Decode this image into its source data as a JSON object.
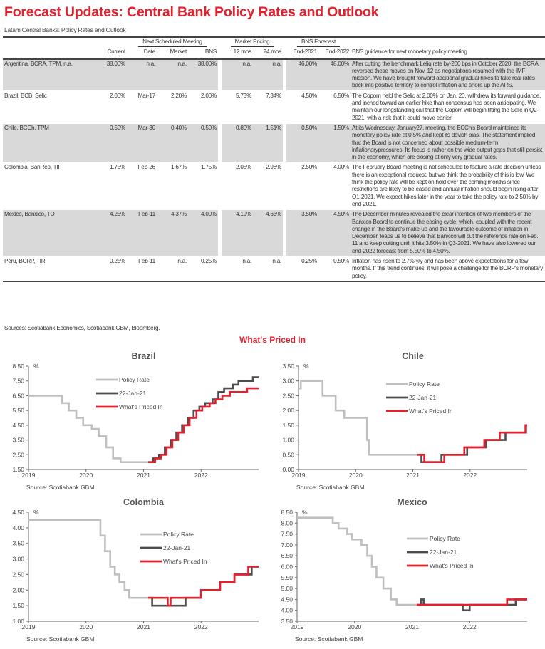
{
  "title": "Forecast Updates: Central Bank Policy Rates and Outlook",
  "subtitle": "Latam Central Banks: Policy Rates and Outlook",
  "table": {
    "group_headers": {
      "next_meeting": "Next Scheduled Meeting",
      "market_pricing": "Market Pricing",
      "bns_forecast": "BNS Forecast"
    },
    "columns": [
      "Current",
      "Date",
      "Market",
      "BNS",
      "12 mos",
      "24 mos",
      "End-2021",
      "End-2022",
      "BNS guidance for next monetary policy meeting"
    ],
    "rows": [
      {
        "bank": "Argentina, BCRA, TPM, n.a.",
        "current": "38.00%",
        "date": "n.a.",
        "market": "n.a.",
        "bns": "38.00%",
        "m12": "n.a.",
        "m24": "n.a.",
        "end2021": "46.00%",
        "end2022": "48.00%",
        "guidance": "After cutting the benchmark Leliq rate by-200 bps in October 2020, the BCRA reversed these moves on Nov. 12 as negotiations resumed with the IMF mission. We have brought forward additional gradual hikes to take real rates back into positive territory to control inflation and shore up the ARS.",
        "shaded": true
      },
      {
        "bank": "Brazil, BCB, Selic",
        "current": "2.00%",
        "date": "Mar-17",
        "market": "2.20%",
        "bns": "2.00%",
        "m12": "5.73%",
        "m24": "7.34%",
        "end2021": "4.50%",
        "end2022": "6.50%",
        "guidance": "The Copom held the Selic at 2.00% on Jan. 20, withdrew its forward guidance, and inched toward an earlier hike than consensus has been anticipating. We maintain our longstanding call that the Copom will begin lifting the Selic in Q2-2021, with a risk that it could move earlier.",
        "shaded": false
      },
      {
        "bank": "Chile, BCCh, TPM",
        "current": "0.50%",
        "date": "Mar-30",
        "market": "0.40%",
        "bns": "0.50%",
        "m12": "0.80%",
        "m24": "1.51%",
        "end2021": "0.50%",
        "end2022": "1.50%",
        "guidance": "At its Wednesday, January27, meeting, the BCCh's Board maintained its monetary policy rate at 0.5% and kept its dovish bias. The statement implied that the Board is not concerned about possible medium-term inflationarypressures. Its focus is rather on the wide output gaps that still persist in the economy, which are closing at only very gradual rates.",
        "shaded": true
      },
      {
        "bank": "Colombia, BanRep, TII",
        "current": "1.75%",
        "date": "Feb-26",
        "market": "1.67%",
        "bns": "1.75%",
        "m12": "2.05%",
        "m24": "2.98%",
        "end2021": "2.50%",
        "end2022": "4.00%",
        "guidance": "The February Board meeting is not scheduled to feature a rate decision unless there is an exceptional request, but we think the probability of this is low. We think the policy rate will be kept on hold over the coming months since restrictions are likely to be eased and annual inflation should begin rising after Q1-2021. We expect hikes later in the year to take the policy rate to 2.50% by end-2021.",
        "shaded": false
      },
      {
        "bank": "Mexico, Banxico, TO",
        "current": "4.25%",
        "date": "Feb-11",
        "market": "4.37%",
        "bns": "4.00%",
        "m12": "4.19%",
        "m24": "4.63%",
        "end2021": "3.50%",
        "end2022": "4.50%",
        "guidance": "The December minutes revealed the clear intention of two members of the Banxico Board to continue the easing cycle, which, coupled with the recent change in the Board's make-up and the favourable outcome of inflation in December, leads us to believe that Banxico will cut the reference rate on Feb. 11 and keep cutting until it hits 3.50% in Q3-2021. We have also lowered our end-2022 forecast from 5.50% to 4.50%.",
        "shaded": true
      },
      {
        "bank": "Peru, BCRP, TIR",
        "current": "0.25%",
        "date": "Feb-11",
        "market": "n.a.",
        "bns": "0.25%",
        "m12": "n.a.",
        "m24": "n.a.",
        "end2021": "0.25%",
        "end2022": "0.50%",
        "guidance": "Inflation has risen to 2.7% y/y and has been above expectations for a few months. If this trend continues, it will pose a challenge for the BCRP's monetary policy.",
        "shaded": false
      }
    ]
  },
  "sources": "Sources: Scotiabank Economics, Scotiabank GBM, Bloomberg.",
  "section_title": "What's Priced In",
  "colors": {
    "accent": "#e3202e",
    "policy_rate": "#bfbfbf",
    "jan22": "#4d4d4d",
    "priced_in": "#e3202e",
    "row_shade": "#d9d9d9"
  },
  "chart_data": [
    {
      "type": "line",
      "step": true,
      "title": "Brazil",
      "ylabel": "%",
      "source": "Source: Scotiabank GBM",
      "xlim": [
        2019,
        2023
      ],
      "xticks": [
        "2019",
        "2020",
        "2021",
        "2022"
      ],
      "ylim": [
        1.5,
        8.5
      ],
      "yticks": [
        "1.50",
        "2.50",
        "3.50",
        "4.50",
        "5.50",
        "6.50",
        "7.50",
        "8.50"
      ],
      "legend": "top-center",
      "series": [
        {
          "name": "Policy Rate",
          "color": "#bfbfbf",
          "points": [
            [
              2019,
              6.5
            ],
            [
              2019.58,
              6.0
            ],
            [
              2019.7,
              5.5
            ],
            [
              2019.83,
              5.0
            ],
            [
              2019.95,
              4.5
            ],
            [
              2020.1,
              4.25
            ],
            [
              2020.22,
              3.75
            ],
            [
              2020.35,
              3.0
            ],
            [
              2020.47,
              2.25
            ],
            [
              2020.6,
              2.0
            ],
            [
              2021.08,
              2.0
            ]
          ]
        },
        {
          "name": "22-Jan-21",
          "color": "#4d4d4d",
          "points": [
            [
              2021.08,
              2.0
            ],
            [
              2021.17,
              2.25
            ],
            [
              2021.27,
              2.5
            ],
            [
              2021.37,
              3.0
            ],
            [
              2021.47,
              3.5
            ],
            [
              2021.57,
              4.0
            ],
            [
              2021.67,
              4.5
            ],
            [
              2021.77,
              5.0
            ],
            [
              2021.87,
              5.5
            ],
            [
              2021.97,
              5.75
            ],
            [
              2022.07,
              6.0
            ],
            [
              2022.2,
              6.25
            ],
            [
              2022.3,
              6.75
            ],
            [
              2022.4,
              7.0
            ],
            [
              2022.55,
              7.25
            ],
            [
              2022.65,
              7.5
            ],
            [
              2022.9,
              7.75
            ],
            [
              2023,
              7.75
            ]
          ]
        },
        {
          "name": "What's Priced In",
          "color": "#e3202e",
          "points": [
            [
              2021.08,
              2.0
            ],
            [
              2021.2,
              2.25
            ],
            [
              2021.3,
              2.5
            ],
            [
              2021.4,
              3.0
            ],
            [
              2021.5,
              3.5
            ],
            [
              2021.6,
              4.0
            ],
            [
              2021.7,
              4.5
            ],
            [
              2021.8,
              5.0
            ],
            [
              2021.92,
              5.5
            ],
            [
              2022.02,
              5.75
            ],
            [
              2022.15,
              6.0
            ],
            [
              2022.25,
              6.25
            ],
            [
              2022.37,
              6.5
            ],
            [
              2022.5,
              6.75
            ],
            [
              2022.8,
              7.0
            ],
            [
              2023,
              7.0
            ]
          ]
        }
      ]
    },
    {
      "type": "line",
      "step": true,
      "title": "Chile",
      "ylabel": "%",
      "source": "Source: Scotiabank GBM",
      "xlim": [
        2019,
        2023
      ],
      "xticks": [
        "2019",
        "2020",
        "2021",
        "2022"
      ],
      "ylim": [
        0,
        3.5
      ],
      "yticks": [
        "0.00",
        "0.50",
        "1.00",
        "1.50",
        "2.00",
        "2.50",
        "3.00",
        "3.50"
      ],
      "legend": "top-right",
      "series": [
        {
          "name": "Policy Rate",
          "color": "#bfbfbf",
          "points": [
            [
              2019,
              2.75
            ],
            [
              2019.04,
              3.0
            ],
            [
              2019.42,
              2.5
            ],
            [
              2019.65,
              2.0
            ],
            [
              2019.8,
              1.75
            ],
            [
              2020.2,
              1.0
            ],
            [
              2020.23,
              0.5
            ],
            [
              2021.08,
              0.5
            ]
          ]
        },
        {
          "name": "22-Jan-21",
          "color": "#4d4d4d",
          "points": [
            [
              2021.08,
              0.5
            ],
            [
              2021.15,
              0.25
            ],
            [
              2021.5,
              0.5
            ],
            [
              2021.95,
              0.75
            ],
            [
              2022.28,
              1.0
            ],
            [
              2022.62,
              1.25
            ],
            [
              2022.98,
              1.5
            ],
            [
              2023,
              1.5
            ]
          ]
        },
        {
          "name": "What's Priced In",
          "color": "#e3202e",
          "points": [
            [
              2021.08,
              0.5
            ],
            [
              2021.2,
              0.25
            ],
            [
              2021.55,
              0.5
            ],
            [
              2021.9,
              0.75
            ],
            [
              2022.25,
              1.0
            ],
            [
              2022.52,
              1.25
            ],
            [
              2022.97,
              1.5
            ],
            [
              2023,
              1.5
            ]
          ]
        }
      ]
    },
    {
      "type": "line",
      "step": true,
      "title": "Colombia",
      "ylabel": "%",
      "source": "Source: Scotiabank GBM",
      "xlim": [
        2019,
        2023
      ],
      "xticks": [
        "2019",
        "2020",
        "2021",
        "2022"
      ],
      "ylim": [
        1.0,
        4.5
      ],
      "yticks": [
        "1.00",
        "1.50",
        "2.00",
        "2.50",
        "3.00",
        "3.50",
        "4.00",
        "4.50"
      ],
      "legend": "top-right",
      "series": [
        {
          "name": "Policy Rate",
          "color": "#bfbfbf",
          "points": [
            [
              2019,
              4.25
            ],
            [
              2020.25,
              3.75
            ],
            [
              2020.33,
              3.25
            ],
            [
              2020.42,
              2.75
            ],
            [
              2020.5,
              2.5
            ],
            [
              2020.58,
              2.25
            ],
            [
              2020.67,
              2.0
            ],
            [
              2020.75,
              1.75
            ],
            [
              2021.08,
              1.75
            ]
          ]
        },
        {
          "name": "22-Jan-21",
          "color": "#4d4d4d",
          "points": [
            [
              2021.08,
              1.75
            ],
            [
              2021.15,
              1.5
            ],
            [
              2021.73,
              1.75
            ],
            [
              2022.0,
              2.0
            ],
            [
              2022.33,
              2.25
            ],
            [
              2022.58,
              2.5
            ],
            [
              2022.88,
              2.75
            ],
            [
              2023,
              2.75
            ]
          ]
        },
        {
          "name": "What's Priced In",
          "color": "#e3202e",
          "points": [
            [
              2021.08,
              1.75
            ],
            [
              2021.42,
              1.5
            ],
            [
              2021.47,
              1.75
            ],
            [
              2022.0,
              2.0
            ],
            [
              2022.33,
              2.25
            ],
            [
              2022.58,
              2.5
            ],
            [
              2022.82,
              2.75
            ],
            [
              2023,
              2.75
            ]
          ]
        }
      ]
    },
    {
      "type": "line",
      "step": true,
      "title": "Mexico",
      "ylabel": "%",
      "source": "Source: Scotiabank GBM",
      "xlim": [
        2019,
        2023
      ],
      "xticks": [
        "2019",
        "2020",
        "2021",
        "2022"
      ],
      "ylim": [
        3.5,
        8.5
      ],
      "yticks": [
        "3.50",
        "4.00",
        "4.50",
        "5.00",
        "5.50",
        "6.00",
        "6.50",
        "7.00",
        "7.50",
        "8.00",
        "8.50"
      ],
      "legend": "top-right",
      "series": [
        {
          "name": "Policy Rate",
          "color": "#bfbfbf",
          "points": [
            [
              2019,
              8.25
            ],
            [
              2019.62,
              8.0
            ],
            [
              2019.72,
              7.75
            ],
            [
              2019.87,
              7.5
            ],
            [
              2019.95,
              7.25
            ],
            [
              2020.12,
              7.0
            ],
            [
              2020.22,
              6.5
            ],
            [
              2020.3,
              6.0
            ],
            [
              2020.38,
              5.5
            ],
            [
              2020.5,
              5.0
            ],
            [
              2020.63,
              4.5
            ],
            [
              2020.73,
              4.25
            ],
            [
              2021.08,
              4.25
            ]
          ]
        },
        {
          "name": "22-Jan-21",
          "color": "#4d4d4d",
          "points": [
            [
              2021.08,
              4.25
            ],
            [
              2021.15,
              4.5
            ],
            [
              2021.2,
              4.25
            ],
            [
              2021.88,
              4.0
            ],
            [
              2022.0,
              4.25
            ],
            [
              2022.8,
              4.5
            ],
            [
              2023,
              4.5
            ]
          ]
        },
        {
          "name": "What's Priced In",
          "color": "#e3202e",
          "points": [
            [
              2021.08,
              4.25
            ],
            [
              2022.65,
              4.5
            ],
            [
              2023,
              4.5
            ]
          ]
        }
      ]
    }
  ]
}
